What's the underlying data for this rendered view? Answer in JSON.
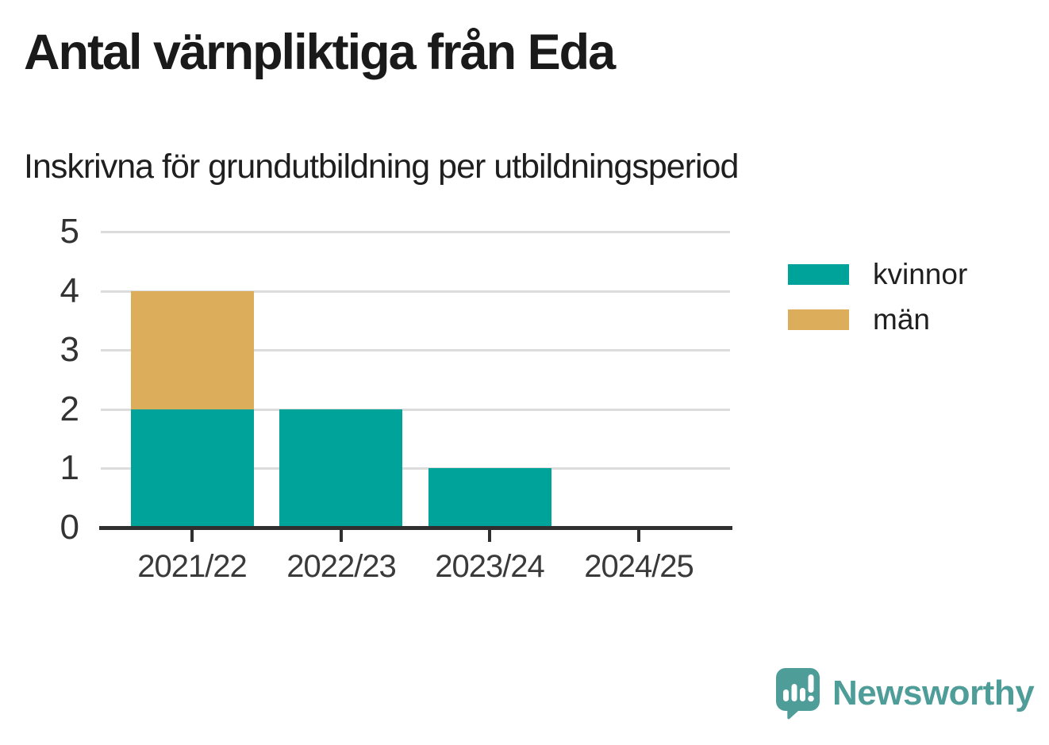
{
  "chart_data": {
    "type": "bar",
    "stacked": true,
    "title": "Antal värnpliktiga från Eda",
    "subtitle": "Inskrivna för grundutbildning per utbildningsperiod",
    "categories": [
      "2021/22",
      "2022/23",
      "2023/24",
      "2024/25"
    ],
    "series": [
      {
        "name": "kvinnor",
        "color": "#00a39a",
        "values": [
          2,
          2,
          1,
          0
        ]
      },
      {
        "name": "män",
        "color": "#dcae5c",
        "values": [
          2,
          0,
          0,
          0
        ]
      }
    ],
    "totals": [
      4,
      2,
      1,
      0
    ],
    "ylim": [
      0,
      5
    ],
    "yticks": [
      0,
      1,
      2,
      3,
      4,
      5
    ],
    "grid": true,
    "legend_position": "right"
  },
  "colors": {
    "background": "#ffffff",
    "gridline": "#dcdcdc",
    "axis": "#2f2f2f",
    "tick_label": "#333333",
    "title_text": "#1a1a1a"
  },
  "branding": {
    "logo_text": "Newsworthy",
    "logo_color": "#4f9d98",
    "logo_icon": "speech-bubble-bar-chart-icon"
  }
}
